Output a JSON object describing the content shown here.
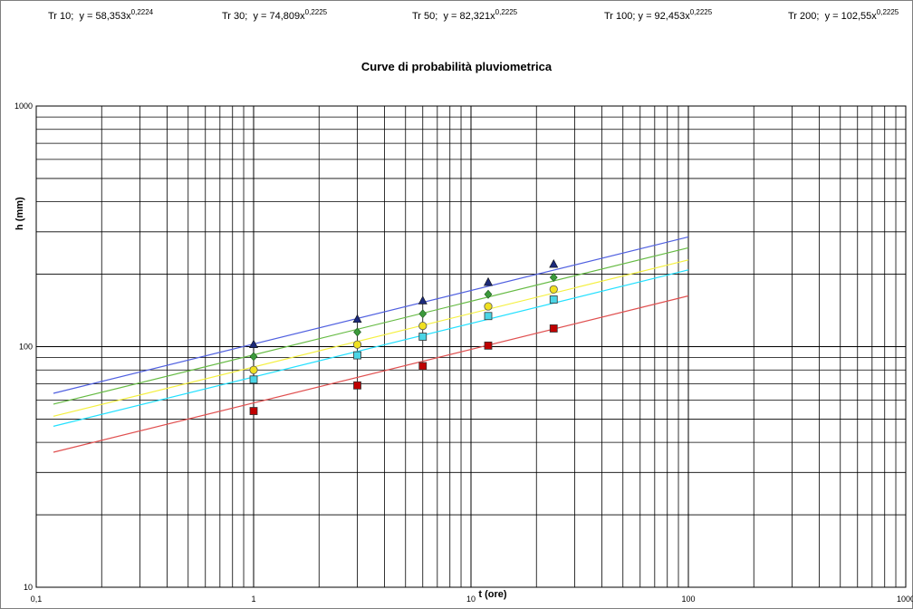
{
  "equations": [
    {
      "prefix": "Tr 10;",
      "eq": "y = 58,353x",
      "exp": "0,2224"
    },
    {
      "prefix": "Tr 30;",
      "eq": "y = 74,809x",
      "exp": "0,2225"
    },
    {
      "prefix": "Tr 50;",
      "eq": "y = 82,321x",
      "exp": "0,2225"
    },
    {
      "prefix": "Tr 100;",
      "eq": "y = 92,453x",
      "exp": "0,2225"
    },
    {
      "prefix": "Tr 200;",
      "eq": "y = 102,55x",
      "exp": "0,2225"
    }
  ],
  "chart_data": {
    "type": "scatter",
    "title": "Curve di probabilità pluviometrica",
    "xlabel": "t (ore)",
    "ylabel": "h (mm)",
    "xscale": "log",
    "yscale": "log",
    "xlim": [
      0.1,
      1000
    ],
    "ylim": [
      10,
      1000
    ],
    "x_tick_labels": [
      "0,1",
      "1",
      "10",
      "100",
      "1000"
    ],
    "y_tick_labels": [
      "10",
      "100",
      "1000"
    ],
    "grid": true,
    "trendline_range": [
      0.12,
      100
    ],
    "series": [
      {
        "color": "#c00000",
        "line_color": "#e05050",
        "marker": "square",
        "coef": 58.353,
        "exp": 0.2224,
        "points": [
          [
            1,
            54
          ],
          [
            3,
            69
          ],
          [
            6,
            83
          ],
          [
            12,
            101
          ],
          [
            24,
            119
          ]
        ]
      },
      {
        "color": "#4bd5e6",
        "line_color": "#22e0ff",
        "marker": "square",
        "coef": 74.809,
        "exp": 0.2225,
        "points": [
          [
            1,
            73
          ],
          [
            3,
            92
          ],
          [
            6,
            110
          ],
          [
            12,
            134
          ],
          [
            24,
            157
          ]
        ]
      },
      {
        "color": "#f0e020",
        "line_color": "#f4f040",
        "marker": "circle",
        "coef": 82.321,
        "exp": 0.2225,
        "points": [
          [
            1,
            80
          ],
          [
            3,
            102
          ],
          [
            6,
            122
          ],
          [
            12,
            147
          ],
          [
            24,
            173
          ]
        ]
      },
      {
        "color": "#3c9a3c",
        "line_color": "#66bb44",
        "marker": "diamond",
        "coef": 92.453,
        "exp": 0.2225,
        "points": [
          [
            1,
            91
          ],
          [
            3,
            115
          ],
          [
            6,
            137
          ],
          [
            12,
            165
          ],
          [
            24,
            194
          ]
        ]
      },
      {
        "color": "#1c2a7a",
        "line_color": "#5060e0",
        "marker": "triangle",
        "coef": 102.55,
        "exp": 0.2225,
        "points": [
          [
            1,
            102
          ],
          [
            3,
            130
          ],
          [
            6,
            155
          ],
          [
            12,
            185
          ],
          [
            24,
            220
          ]
        ]
      }
    ]
  }
}
